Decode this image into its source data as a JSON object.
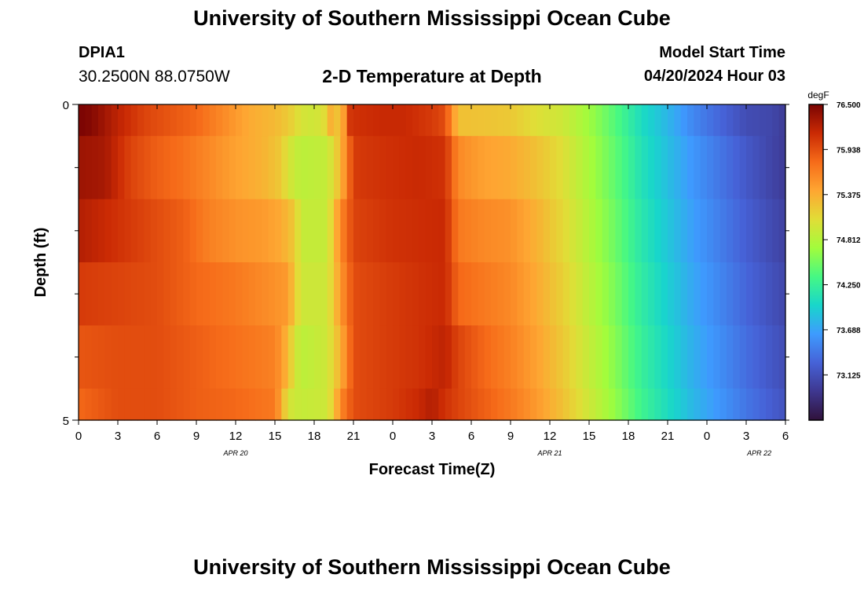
{
  "page": {
    "title": "University of Southern Mississippi Ocean Cube",
    "footer_title": "University of Southern Mississippi Ocean Cube",
    "station": "DPIA1",
    "coords": "30.2500N  88.0750W",
    "subtitle": "2-D Temperature at Depth",
    "model_start_label": "Model Start Time",
    "model_start_value": "04/20/2024 Hour 03"
  },
  "chart_data": {
    "type": "heatmap",
    "title": "2-D Temperature at Depth",
    "xlabel": "Forecast Time(Z)",
    "ylabel": "Depth (ft)",
    "x_range_hours": [
      0,
      54
    ],
    "y_range": [
      0,
      5
    ],
    "x_tick_labels": [
      "0",
      "3",
      "6",
      "9",
      "12",
      "15",
      "18",
      "21",
      "0",
      "3",
      "6",
      "9",
      "12",
      "15",
      "18",
      "21",
      "0",
      "3",
      "6"
    ],
    "date_labels": [
      {
        "hour": 12,
        "text": "APR 20"
      },
      {
        "hour": 36,
        "text": "APR 21"
      },
      {
        "hour": 52,
        "text": "APR 22"
      }
    ],
    "y_tick_labels": [
      {
        "value": 0,
        "text": "0"
      },
      {
        "value": 5,
        "text": "5"
      }
    ],
    "colorbar": {
      "unit": "degF",
      "min": 72.56,
      "max": 76.5,
      "ticks": [
        "76.500",
        "75.938",
        "75.375",
        "74.812",
        "74.250",
        "73.688",
        "73.125"
      ],
      "tick_values": [
        76.5,
        75.938,
        75.375,
        74.812,
        74.25,
        73.688,
        73.125
      ],
      "colors": [
        "#30123b",
        "#3e378f",
        "#4662d7",
        "#3e9bfe",
        "#18d6cb",
        "#46f884",
        "#a2fc3c",
        "#e1dd37",
        "#fea632",
        "#f66b19",
        "#ca2a04",
        "#7a0403"
      ]
    },
    "depth_layers": [
      {
        "depth_range": [
          0,
          0.5
        ],
        "temps": [
          [
            0,
            76.5
          ],
          [
            1,
            76.45
          ],
          [
            3,
            76.2
          ],
          [
            5,
            76.0
          ],
          [
            7,
            75.9
          ],
          [
            9,
            75.8
          ],
          [
            11,
            75.6
          ],
          [
            13,
            75.4
          ],
          [
            15,
            75.3
          ],
          [
            16,
            75.2
          ],
          [
            17,
            75.0
          ],
          [
            18,
            74.95
          ],
          [
            19,
            75.1
          ],
          [
            19.5,
            75.6
          ],
          [
            20,
            74.9
          ],
          [
            20.5,
            76.05
          ],
          [
            21,
            76.1
          ],
          [
            23,
            76.15
          ],
          [
            25,
            76.15
          ],
          [
            27,
            76.05
          ],
          [
            28,
            75.95
          ],
          [
            28.5,
            75.6
          ],
          [
            29,
            75.25
          ],
          [
            30,
            75.25
          ],
          [
            33,
            75.2
          ],
          [
            35,
            75.05
          ],
          [
            37,
            74.95
          ],
          [
            39,
            74.7
          ],
          [
            41,
            74.4
          ],
          [
            43,
            74.05
          ],
          [
            45,
            73.8
          ],
          [
            47,
            73.5
          ],
          [
            49,
            73.3
          ],
          [
            51,
            73.1
          ],
          [
            53,
            73.05
          ],
          [
            54,
            72.95
          ]
        ]
      },
      {
        "depth_range": [
          0.5,
          1.5
        ],
        "temps": [
          [
            0,
            76.35
          ],
          [
            2,
            76.3
          ],
          [
            4,
            76.0
          ],
          [
            6,
            75.85
          ],
          [
            8,
            75.75
          ],
          [
            10,
            75.6
          ],
          [
            12,
            75.45
          ],
          [
            14,
            75.35
          ],
          [
            15.5,
            75.2
          ],
          [
            16,
            75.0
          ],
          [
            17,
            74.85
          ],
          [
            19,
            74.9
          ],
          [
            20,
            75.3
          ],
          [
            21,
            76.05
          ],
          [
            23,
            76.1
          ],
          [
            26,
            76.15
          ],
          [
            28,
            76.1
          ],
          [
            29,
            75.6
          ],
          [
            31,
            75.45
          ],
          [
            33,
            75.4
          ],
          [
            35,
            75.25
          ],
          [
            37,
            75.05
          ],
          [
            39,
            74.75
          ],
          [
            41,
            74.45
          ],
          [
            43,
            74.1
          ],
          [
            45,
            73.85
          ],
          [
            47,
            73.6
          ],
          [
            49,
            73.4
          ],
          [
            51,
            73.2
          ],
          [
            54,
            72.95
          ]
        ]
      },
      {
        "depth_range": [
          1.5,
          2.5
        ],
        "temps": [
          [
            0,
            76.25
          ],
          [
            3,
            76.1
          ],
          [
            6,
            75.95
          ],
          [
            8,
            75.85
          ],
          [
            10,
            75.65
          ],
          [
            12,
            75.55
          ],
          [
            14,
            75.5
          ],
          [
            15.5,
            75.4
          ],
          [
            16.5,
            75.2
          ],
          [
            17,
            74.9
          ],
          [
            19,
            74.9
          ],
          [
            20,
            75.6
          ],
          [
            21,
            76.0
          ],
          [
            24,
            76.1
          ],
          [
            28,
            76.15
          ],
          [
            29,
            75.7
          ],
          [
            31,
            75.6
          ],
          [
            33,
            75.55
          ],
          [
            35,
            75.35
          ],
          [
            37,
            75.1
          ],
          [
            39,
            74.8
          ],
          [
            41,
            74.5
          ],
          [
            43,
            74.15
          ],
          [
            45,
            73.9
          ],
          [
            47,
            73.65
          ],
          [
            49,
            73.45
          ],
          [
            51,
            73.25
          ],
          [
            54,
            73.0
          ]
        ]
      },
      {
        "depth_range": [
          2.5,
          3.5
        ],
        "temps": [
          [
            0,
            76.05
          ],
          [
            3,
            76.0
          ],
          [
            6,
            75.95
          ],
          [
            9,
            75.8
          ],
          [
            12,
            75.7
          ],
          [
            14,
            75.6
          ],
          [
            15,
            75.55
          ],
          [
            16,
            75.5
          ],
          [
            16.5,
            75.2
          ],
          [
            17,
            74.95
          ],
          [
            19,
            74.95
          ],
          [
            20,
            75.5
          ],
          [
            21,
            75.95
          ],
          [
            24,
            76.05
          ],
          [
            28,
            76.15
          ],
          [
            29,
            75.8
          ],
          [
            31,
            75.7
          ],
          [
            33,
            75.6
          ],
          [
            35,
            75.4
          ],
          [
            37,
            75.15
          ],
          [
            39,
            74.85
          ],
          [
            41,
            74.55
          ],
          [
            43,
            74.2
          ],
          [
            45,
            73.95
          ],
          [
            47,
            73.7
          ],
          [
            49,
            73.5
          ],
          [
            51,
            73.3
          ],
          [
            54,
            73.05
          ]
        ]
      },
      {
        "depth_range": [
          3.5,
          4.5
        ],
        "temps": [
          [
            0,
            75.9
          ],
          [
            3,
            75.95
          ],
          [
            6,
            75.95
          ],
          [
            9,
            75.85
          ],
          [
            12,
            75.75
          ],
          [
            15,
            75.65
          ],
          [
            15.5,
            75.5
          ],
          [
            16,
            75.3
          ],
          [
            16.5,
            75.0
          ],
          [
            17,
            74.85
          ],
          [
            19,
            74.95
          ],
          [
            20,
            75.35
          ],
          [
            21,
            75.95
          ],
          [
            24,
            76.05
          ],
          [
            26,
            76.1
          ],
          [
            28,
            76.2
          ],
          [
            29,
            76.0
          ],
          [
            31,
            75.8
          ],
          [
            33,
            75.65
          ],
          [
            35,
            75.45
          ],
          [
            37,
            75.2
          ],
          [
            39,
            74.9
          ],
          [
            41,
            74.6
          ],
          [
            43,
            74.25
          ],
          [
            45,
            74.0
          ],
          [
            47,
            73.75
          ],
          [
            49,
            73.55
          ],
          [
            51,
            73.35
          ],
          [
            54,
            73.1
          ]
        ]
      },
      {
        "depth_range": [
          4.5,
          5.0
        ],
        "temps": [
          [
            0,
            75.8
          ],
          [
            3,
            75.95
          ],
          [
            6,
            75.95
          ],
          [
            9,
            75.85
          ],
          [
            12,
            75.8
          ],
          [
            15,
            75.7
          ],
          [
            15.5,
            75.4
          ],
          [
            16,
            75.0
          ],
          [
            17,
            74.9
          ],
          [
            19,
            74.95
          ],
          [
            19.5,
            75.2
          ],
          [
            20,
            75.6
          ],
          [
            21,
            75.95
          ],
          [
            24,
            76.05
          ],
          [
            26,
            76.15
          ],
          [
            27,
            76.25
          ],
          [
            28,
            76.1
          ],
          [
            29,
            76.0
          ],
          [
            31,
            75.85
          ],
          [
            33,
            75.7
          ],
          [
            35,
            75.5
          ],
          [
            37,
            75.25
          ],
          [
            39,
            74.95
          ],
          [
            41,
            74.65
          ],
          [
            43,
            74.3
          ],
          [
            45,
            74.05
          ],
          [
            47,
            73.8
          ],
          [
            49,
            73.6
          ],
          [
            51,
            73.4
          ],
          [
            54,
            73.15
          ]
        ]
      }
    ]
  }
}
